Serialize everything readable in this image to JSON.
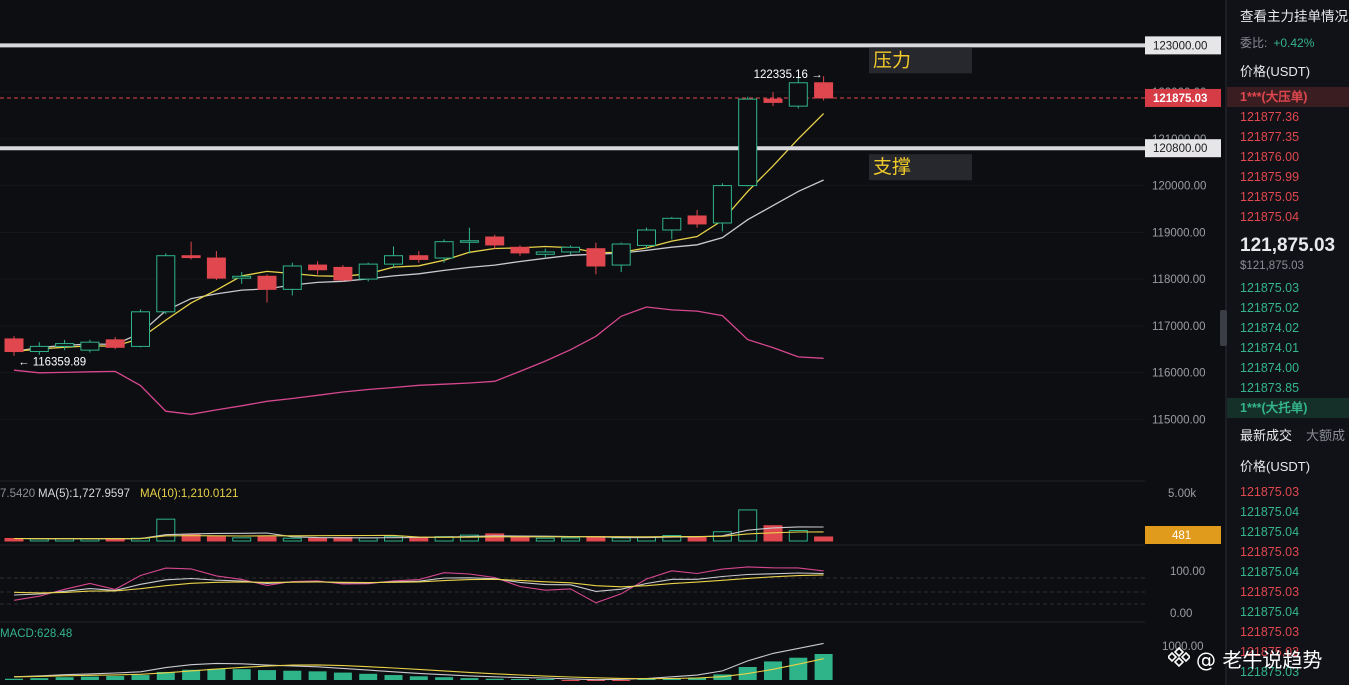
{
  "chart_data": {
    "type": "candlestick",
    "symbol_quote": "USDT",
    "price_axis": {
      "min": 114600,
      "max": 123500,
      "ticks": [
        "123000.00",
        "122000.00",
        "121000.00",
        "120000.00",
        "119000.00",
        "118000.00",
        "117000.00",
        "116000.00",
        "115000.00"
      ]
    },
    "candles": [
      {
        "o": 116720,
        "h": 116780,
        "l": 116360,
        "c": 116450
      },
      {
        "o": 116450,
        "h": 116650,
        "l": 116380,
        "c": 116560
      },
      {
        "o": 116560,
        "h": 116700,
        "l": 116480,
        "c": 116620
      },
      {
        "o": 116480,
        "h": 116700,
        "l": 116430,
        "c": 116650
      },
      {
        "o": 116700,
        "h": 116760,
        "l": 116500,
        "c": 116540
      },
      {
        "o": 116560,
        "h": 117350,
        "l": 116540,
        "c": 117300
      },
      {
        "o": 117300,
        "h": 118550,
        "l": 117250,
        "c": 118500
      },
      {
        "o": 118500,
        "h": 118800,
        "l": 118420,
        "c": 118460
      },
      {
        "o": 118450,
        "h": 118600,
        "l": 117980,
        "c": 118020
      },
      {
        "o": 118020,
        "h": 118150,
        "l": 117900,
        "c": 118060
      },
      {
        "o": 118060,
        "h": 118100,
        "l": 117500,
        "c": 117780
      },
      {
        "o": 117780,
        "h": 118350,
        "l": 117650,
        "c": 118280
      },
      {
        "o": 118300,
        "h": 118380,
        "l": 118100,
        "c": 118200
      },
      {
        "o": 118250,
        "h": 118300,
        "l": 117950,
        "c": 117980
      },
      {
        "o": 118000,
        "h": 118350,
        "l": 117950,
        "c": 118320
      },
      {
        "o": 118320,
        "h": 118700,
        "l": 118250,
        "c": 118500
      },
      {
        "o": 118500,
        "h": 118600,
        "l": 118350,
        "c": 118420
      },
      {
        "o": 118450,
        "h": 118850,
        "l": 118350,
        "c": 118800
      },
      {
        "o": 118800,
        "h": 119100,
        "l": 118550,
        "c": 118820
      },
      {
        "o": 118900,
        "h": 118950,
        "l": 118650,
        "c": 118730
      },
      {
        "o": 118680,
        "h": 118720,
        "l": 118500,
        "c": 118560
      },
      {
        "o": 118530,
        "h": 118650,
        "l": 118470,
        "c": 118580
      },
      {
        "o": 118580,
        "h": 118720,
        "l": 118520,
        "c": 118680
      },
      {
        "o": 118650,
        "h": 118780,
        "l": 118100,
        "c": 118280
      },
      {
        "o": 118300,
        "h": 118780,
        "l": 118150,
        "c": 118750
      },
      {
        "o": 118720,
        "h": 119100,
        "l": 118650,
        "c": 119050
      },
      {
        "o": 119050,
        "h": 119330,
        "l": 118850,
        "c": 119300
      },
      {
        "o": 119350,
        "h": 119480,
        "l": 119100,
        "c": 119180
      },
      {
        "o": 119200,
        "h": 120050,
        "l": 119020,
        "c": 120000
      },
      {
        "o": 120000,
        "h": 121900,
        "l": 119980,
        "c": 121850
      },
      {
        "o": 121850,
        "h": 122000,
        "l": 121700,
        "c": 121780
      },
      {
        "o": 121700,
        "h": 122335.16,
        "l": 121650,
        "c": 122200
      },
      {
        "o": 122200,
        "h": 122340,
        "l": 121820,
        "c": 121875.03
      }
    ],
    "price_labels": {
      "level_high": "123000.00",
      "current": "121875.03",
      "level_low": "120800.00",
      "hi_annot": "122335.16 →",
      "lo_annot": "← 116359.89"
    },
    "annotations": {
      "resist": "压力",
      "support": "支撑"
    },
    "volume_panel": {
      "ma_prefix": "7.5420",
      "ma5": "MA(5):1,727.9597",
      "ma10": "MA(10):1,210.0121",
      "axis_top": "5.00k",
      "current": "481",
      "values": [
        300,
        250,
        280,
        260,
        300,
        330,
        2600,
        750,
        520,
        380,
        500,
        330,
        300,
        420,
        360,
        560,
        470,
        520,
        700,
        850,
        460,
        330,
        360,
        520,
        370,
        430,
        650,
        520,
        1100,
        3700,
        1820,
        1250,
        480
      ]
    },
    "kdj_panel": {
      "ticks": [
        "100.00",
        "0.00"
      ]
    },
    "macd_panel": {
      "label": "MACD:628.48",
      "axis_top": "1000.00",
      "hist": [
        20,
        30,
        45,
        55,
        65,
        80,
        130,
        165,
        180,
        175,
        160,
        150,
        140,
        120,
        100,
        80,
        60,
        45,
        30,
        20,
        10,
        5,
        -5,
        -15,
        -10,
        0,
        20,
        40,
        90,
        210,
        300,
        360,
        420
      ]
    }
  },
  "sidebar": {
    "title": "查看主力挂单情况",
    "ratio_label": "委比:",
    "ratio_value": "+0.42%",
    "price_header": "价格(USDT)",
    "big_ask": "1***(大压单)",
    "asks": [
      "121877.36",
      "121877.35",
      "121876.00",
      "121875.99",
      "121875.05",
      "121875.04"
    ],
    "last_price": "121,875.03",
    "last_price_usd": "$121,875.03",
    "bids": [
      "121875.03",
      "121875.02",
      "121874.02",
      "121874.01",
      "121874.00",
      "121873.85"
    ],
    "big_bid": "1***(大托单)",
    "tab_recent": "最新成交",
    "tab_large": "大额成",
    "trades_header": "价格(USDT)",
    "trades": [
      {
        "p": "121875.03",
        "side": "red"
      },
      {
        "p": "121875.04",
        "side": "green"
      },
      {
        "p": "121875.04",
        "side": "green"
      },
      {
        "p": "121875.03",
        "side": "red"
      },
      {
        "p": "121875.04",
        "side": "green"
      },
      {
        "p": "121875.03",
        "side": "red"
      },
      {
        "p": "121875.04",
        "side": "green"
      },
      {
        "p": "121875.03",
        "side": "red"
      },
      {
        "p": "121875.03",
        "side": "red"
      },
      {
        "p": "121875.03",
        "side": "green"
      }
    ]
  },
  "watermark": "@ 老牛说趋势"
}
